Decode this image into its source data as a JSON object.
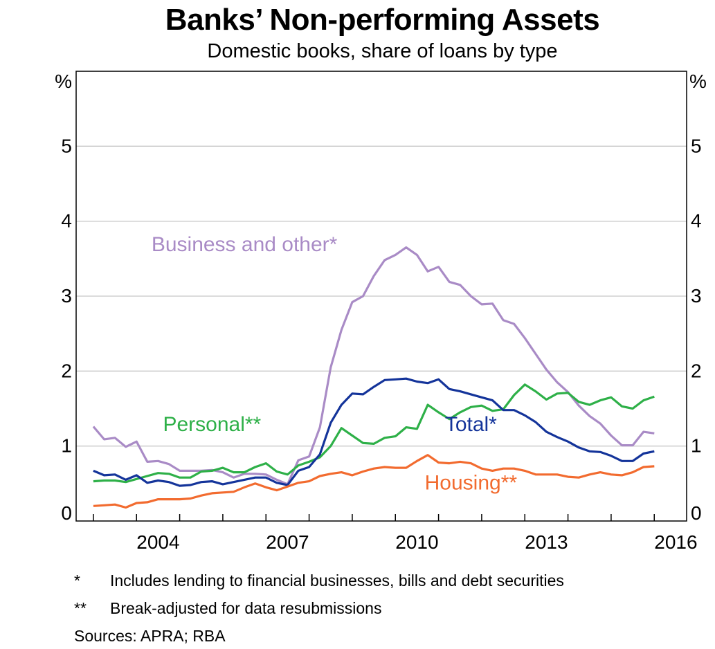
{
  "title": "Banks’ Non-performing Assets",
  "subtitle": "Domestic books, share of loans by type",
  "chart_data": {
    "type": "line",
    "y_unit_left": "%",
    "y_unit_right": "%",
    "ylim": [
      0,
      6
    ],
    "yticks": [
      "0",
      "1",
      "2",
      "3",
      "4",
      "5"
    ],
    "xlim": [
      2002.6,
      2016.75
    ],
    "xticks": [
      {
        "value": 2004,
        "label": "2004"
      },
      {
        "value": 2007,
        "label": "2007"
      },
      {
        "value": 2010,
        "label": "2010"
      },
      {
        "value": 2013,
        "label": "2013"
      },
      {
        "value": 2016,
        "label": "2016"
      }
    ],
    "grid": "horizontal",
    "series": [
      {
        "name": "Business and other*",
        "color": "#a98bc6",
        "label_pos": [
          2006.5,
          3.6
        ],
        "label_anchor": "middle",
        "points": [
          [
            2003.0,
            1.26
          ],
          [
            2003.25,
            1.09
          ],
          [
            2003.5,
            1.11
          ],
          [
            2003.75,
            0.99
          ],
          [
            2004.0,
            1.06
          ],
          [
            2004.25,
            0.79
          ],
          [
            2004.5,
            0.8
          ],
          [
            2004.75,
            0.76
          ],
          [
            2005.0,
            0.67
          ],
          [
            2005.25,
            0.67
          ],
          [
            2005.5,
            0.67
          ],
          [
            2005.75,
            0.68
          ],
          [
            2006.0,
            0.65
          ],
          [
            2006.25,
            0.58
          ],
          [
            2006.5,
            0.63
          ],
          [
            2006.75,
            0.63
          ],
          [
            2007.0,
            0.62
          ],
          [
            2007.25,
            0.55
          ],
          [
            2007.5,
            0.49
          ],
          [
            2007.75,
            0.81
          ],
          [
            2008.0,
            0.86
          ],
          [
            2008.25,
            1.25
          ],
          [
            2008.5,
            2.05
          ],
          [
            2008.75,
            2.55
          ],
          [
            2009.0,
            2.92
          ],
          [
            2009.25,
            3.0
          ],
          [
            2009.5,
            3.27
          ],
          [
            2009.75,
            3.48
          ],
          [
            2010.0,
            3.55
          ],
          [
            2010.25,
            3.65
          ],
          [
            2010.5,
            3.55
          ],
          [
            2010.75,
            3.33
          ],
          [
            2011.0,
            3.39
          ],
          [
            2011.25,
            3.19
          ],
          [
            2011.5,
            3.15
          ],
          [
            2011.75,
            3.0
          ],
          [
            2012.0,
            2.89
          ],
          [
            2012.25,
            2.9
          ],
          [
            2012.5,
            2.68
          ],
          [
            2012.75,
            2.63
          ],
          [
            2013.0,
            2.44
          ],
          [
            2013.25,
            2.23
          ],
          [
            2013.5,
            2.02
          ],
          [
            2013.75,
            1.85
          ],
          [
            2014.0,
            1.72
          ],
          [
            2014.25,
            1.54
          ],
          [
            2014.5,
            1.4
          ],
          [
            2014.75,
            1.3
          ],
          [
            2015.0,
            1.14
          ],
          [
            2015.25,
            1.01
          ],
          [
            2015.5,
            1.01
          ],
          [
            2015.75,
            1.19
          ],
          [
            2016.0,
            1.17
          ]
        ]
      },
      {
        "name": "Personal**",
        "color": "#2eb048",
        "label_pos": [
          2005.75,
          1.2
        ],
        "label_anchor": "middle",
        "points": [
          [
            2003.0,
            0.53
          ],
          [
            2003.25,
            0.54
          ],
          [
            2003.5,
            0.54
          ],
          [
            2003.75,
            0.52
          ],
          [
            2004.0,
            0.56
          ],
          [
            2004.25,
            0.6
          ],
          [
            2004.5,
            0.64
          ],
          [
            2004.75,
            0.63
          ],
          [
            2005.0,
            0.58
          ],
          [
            2005.25,
            0.58
          ],
          [
            2005.5,
            0.66
          ],
          [
            2005.75,
            0.67
          ],
          [
            2006.0,
            0.71
          ],
          [
            2006.25,
            0.65
          ],
          [
            2006.5,
            0.65
          ],
          [
            2006.75,
            0.72
          ],
          [
            2007.0,
            0.77
          ],
          [
            2007.25,
            0.66
          ],
          [
            2007.5,
            0.62
          ],
          [
            2007.75,
            0.74
          ],
          [
            2008.0,
            0.79
          ],
          [
            2008.25,
            0.85
          ],
          [
            2008.5,
            1.0
          ],
          [
            2008.75,
            1.24
          ],
          [
            2009.0,
            1.14
          ],
          [
            2009.25,
            1.04
          ],
          [
            2009.5,
            1.03
          ],
          [
            2009.75,
            1.11
          ],
          [
            2010.0,
            1.13
          ],
          [
            2010.25,
            1.25
          ],
          [
            2010.5,
            1.23
          ],
          [
            2010.75,
            1.55
          ],
          [
            2011.0,
            1.45
          ],
          [
            2011.25,
            1.36
          ],
          [
            2011.5,
            1.45
          ],
          [
            2011.75,
            1.52
          ],
          [
            2012.0,
            1.54
          ],
          [
            2012.25,
            1.47
          ],
          [
            2012.5,
            1.49
          ],
          [
            2012.75,
            1.68
          ],
          [
            2013.0,
            1.82
          ],
          [
            2013.25,
            1.73
          ],
          [
            2013.5,
            1.62
          ],
          [
            2013.75,
            1.7
          ],
          [
            2014.0,
            1.71
          ],
          [
            2014.25,
            1.59
          ],
          [
            2014.5,
            1.55
          ],
          [
            2014.75,
            1.61
          ],
          [
            2015.0,
            1.65
          ],
          [
            2015.25,
            1.53
          ],
          [
            2015.5,
            1.5
          ],
          [
            2015.75,
            1.61
          ],
          [
            2016.0,
            1.66
          ]
        ]
      },
      {
        "name": "Total*",
        "color": "#14349a",
        "label_pos": [
          2011.75,
          1.2
        ],
        "label_anchor": "middle",
        "points": [
          [
            2003.0,
            0.67
          ],
          [
            2003.25,
            0.61
          ],
          [
            2003.5,
            0.62
          ],
          [
            2003.75,
            0.55
          ],
          [
            2004.0,
            0.61
          ],
          [
            2004.25,
            0.51
          ],
          [
            2004.5,
            0.54
          ],
          [
            2004.75,
            0.52
          ],
          [
            2005.0,
            0.47
          ],
          [
            2005.25,
            0.48
          ],
          [
            2005.5,
            0.52
          ],
          [
            2005.75,
            0.53
          ],
          [
            2006.0,
            0.49
          ],
          [
            2006.25,
            0.52
          ],
          [
            2006.5,
            0.55
          ],
          [
            2006.75,
            0.58
          ],
          [
            2007.0,
            0.58
          ],
          [
            2007.25,
            0.51
          ],
          [
            2007.5,
            0.48
          ],
          [
            2007.75,
            0.67
          ],
          [
            2008.0,
            0.72
          ],
          [
            2008.25,
            0.89
          ],
          [
            2008.5,
            1.31
          ],
          [
            2008.75,
            1.55
          ],
          [
            2009.0,
            1.7
          ],
          [
            2009.25,
            1.69
          ],
          [
            2009.5,
            1.79
          ],
          [
            2009.75,
            1.88
          ],
          [
            2010.0,
            1.89
          ],
          [
            2010.25,
            1.9
          ],
          [
            2010.5,
            1.86
          ],
          [
            2010.75,
            1.84
          ],
          [
            2011.0,
            1.89
          ],
          [
            2011.25,
            1.76
          ],
          [
            2011.5,
            1.73
          ],
          [
            2011.75,
            1.69
          ],
          [
            2012.0,
            1.65
          ],
          [
            2012.25,
            1.61
          ],
          [
            2012.5,
            1.48
          ],
          [
            2012.75,
            1.48
          ],
          [
            2013.0,
            1.41
          ],
          [
            2013.25,
            1.32
          ],
          [
            2013.5,
            1.19
          ],
          [
            2013.75,
            1.12
          ],
          [
            2014.0,
            1.06
          ],
          [
            2014.25,
            0.98
          ],
          [
            2014.5,
            0.93
          ],
          [
            2014.75,
            0.92
          ],
          [
            2015.0,
            0.87
          ],
          [
            2015.25,
            0.8
          ],
          [
            2015.5,
            0.8
          ],
          [
            2015.75,
            0.9
          ],
          [
            2016.0,
            0.93
          ]
        ]
      },
      {
        "name": "Housing**",
        "color": "#f26b2f",
        "label_pos": [
          2011.75,
          0.42
        ],
        "label_anchor": "middle",
        "points": [
          [
            2003.0,
            0.2
          ],
          [
            2003.25,
            0.21
          ],
          [
            2003.5,
            0.22
          ],
          [
            2003.75,
            0.18
          ],
          [
            2004.0,
            0.24
          ],
          [
            2004.25,
            0.25
          ],
          [
            2004.5,
            0.29
          ],
          [
            2004.75,
            0.29
          ],
          [
            2005.0,
            0.29
          ],
          [
            2005.25,
            0.3
          ],
          [
            2005.5,
            0.34
          ],
          [
            2005.75,
            0.37
          ],
          [
            2006.0,
            0.38
          ],
          [
            2006.25,
            0.39
          ],
          [
            2006.5,
            0.45
          ],
          [
            2006.75,
            0.5
          ],
          [
            2007.0,
            0.45
          ],
          [
            2007.25,
            0.41
          ],
          [
            2007.5,
            0.46
          ],
          [
            2007.75,
            0.51
          ],
          [
            2008.0,
            0.53
          ],
          [
            2008.25,
            0.6
          ],
          [
            2008.5,
            0.63
          ],
          [
            2008.75,
            0.65
          ],
          [
            2009.0,
            0.61
          ],
          [
            2009.25,
            0.66
          ],
          [
            2009.5,
            0.7
          ],
          [
            2009.75,
            0.72
          ],
          [
            2010.0,
            0.71
          ],
          [
            2010.25,
            0.71
          ],
          [
            2010.5,
            0.8
          ],
          [
            2010.75,
            0.88
          ],
          [
            2011.0,
            0.78
          ],
          [
            2011.25,
            0.77
          ],
          [
            2011.5,
            0.79
          ],
          [
            2011.75,
            0.77
          ],
          [
            2012.0,
            0.7
          ],
          [
            2012.25,
            0.67
          ],
          [
            2012.5,
            0.7
          ],
          [
            2012.75,
            0.7
          ],
          [
            2013.0,
            0.67
          ],
          [
            2013.25,
            0.62
          ],
          [
            2013.5,
            0.62
          ],
          [
            2013.75,
            0.62
          ],
          [
            2014.0,
            0.59
          ],
          [
            2014.25,
            0.58
          ],
          [
            2014.5,
            0.62
          ],
          [
            2014.75,
            0.65
          ],
          [
            2015.0,
            0.62
          ],
          [
            2015.25,
            0.61
          ],
          [
            2015.5,
            0.65
          ],
          [
            2015.75,
            0.72
          ],
          [
            2016.0,
            0.73
          ]
        ]
      }
    ]
  },
  "notes": [
    {
      "mark": "*",
      "text": "Includes lending to financial businesses, bills and debt securities"
    },
    {
      "mark": "**",
      "text": "Break-adjusted for data resubmissions"
    }
  ],
  "sources": "Sources:  APRA; RBA"
}
